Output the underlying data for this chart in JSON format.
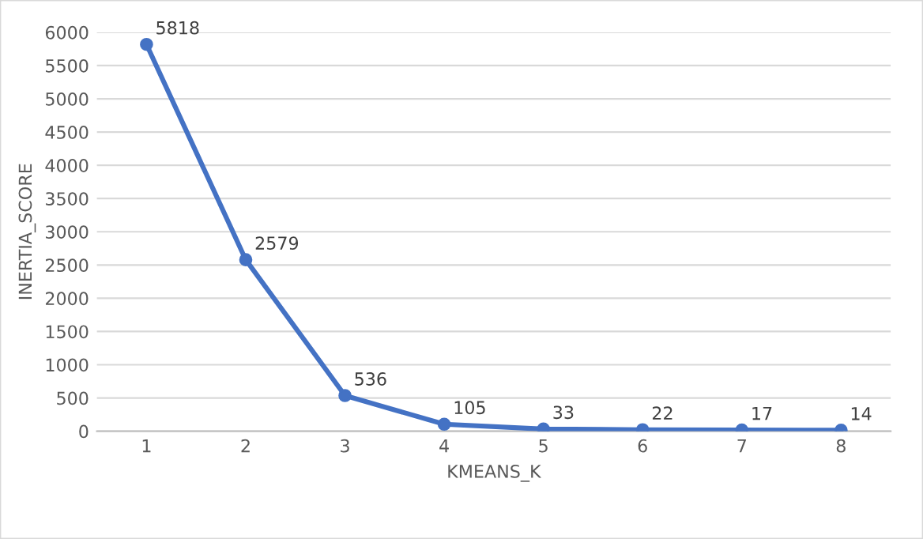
{
  "chart_data": {
    "type": "line",
    "xlabel": "KMEANS_K",
    "ylabel": "INERTIA_SCORE",
    "categories": [
      "1",
      "2",
      "3",
      "4",
      "5",
      "6",
      "7",
      "8"
    ],
    "series": [
      {
        "color": "#4472c4",
        "values": [
          5818,
          2579,
          536,
          105,
          33,
          22,
          17,
          14
        ]
      }
    ],
    "ylim": [
      0,
      6000
    ],
    "yticks": [
      0,
      500,
      1000,
      1500,
      2000,
      2500,
      3000,
      3500,
      4000,
      4500,
      5000,
      5500,
      6000
    ],
    "grid": "y",
    "marker": "circle",
    "line_style": "solid",
    "data_labels": true
  }
}
